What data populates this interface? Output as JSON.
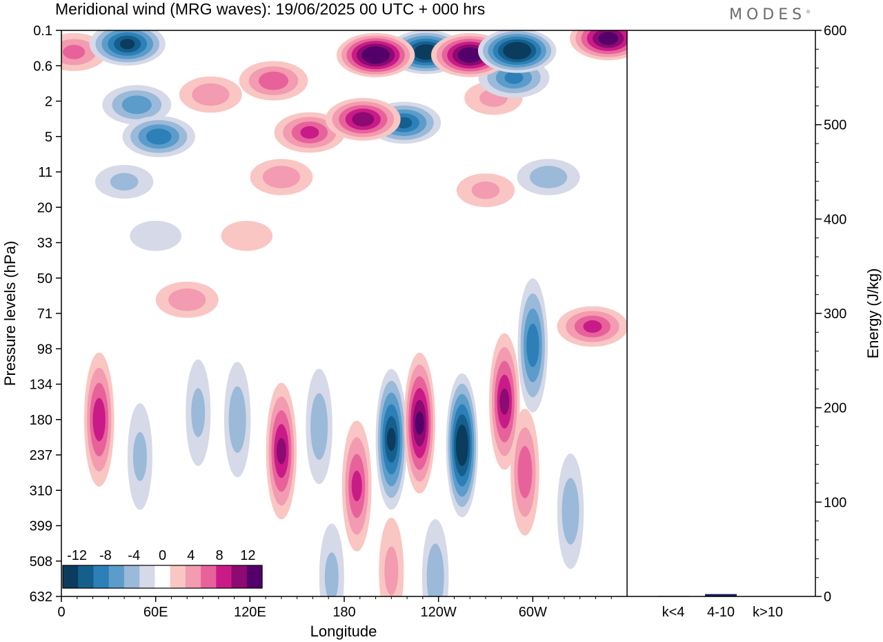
{
  "header": {
    "title": "Meridional wind (MRG waves):  19/06/2025  00 UTC  + 000 hrs",
    "logo": "MODES"
  },
  "colors": {
    "negative": [
      "#0b3c5d",
      "#155f8c",
      "#2d7fb8",
      "#5b9cca",
      "#9bb9d9",
      "#d5d9e8"
    ],
    "positive": [
      "#f9c6c3",
      "#f39bb0",
      "#e7629a",
      "#c91b87",
      "#8c0a72",
      "#54006a"
    ],
    "neutral": "#ffffff",
    "energy_bar": "#1a1a5e"
  },
  "chart_data": [
    {
      "type": "heatmap",
      "title": "Meridional wind (MRG waves):  19/06/2025  00 UTC  + 000 hrs",
      "xlabel": "Longitude",
      "ylabel": "Pressure levels (hPa)",
      "x_ticks": [
        "0",
        "60E",
        "120E",
        "180",
        "120W",
        "60W"
      ],
      "y_ticks": [
        "0.1",
        "0.6",
        "2",
        "5",
        "11",
        "20",
        "33",
        "50",
        "71",
        "98",
        "134",
        "180",
        "237",
        "310",
        "399",
        "508",
        "632"
      ],
      "colorbar": {
        "labels": [
          "-12",
          "-8",
          "-4",
          "0",
          "4",
          "8",
          "12"
        ],
        "levels": [
          -14,
          -12,
          -10,
          -8,
          -6,
          -4,
          -2,
          2,
          4,
          6,
          8,
          10,
          12,
          14
        ]
      },
      "features": [
        {
          "lon": 8,
          "lev": 0.3,
          "value": 6
        },
        {
          "lon": 42,
          "lev": 0.2,
          "value": -12
        },
        {
          "lon": 48,
          "lev": 2.2,
          "value": -7
        },
        {
          "lon": 62,
          "lev": 5.0,
          "value": -9
        },
        {
          "lon": 95,
          "lev": 1.6,
          "value": 5
        },
        {
          "lon": 135,
          "lev": 1.0,
          "value": 7
        },
        {
          "lon": 158,
          "lev": 4.5,
          "value": 8
        },
        {
          "lon": 192,
          "lev": 3.2,
          "value": 11
        },
        {
          "lon": 200,
          "lev": 0.35,
          "value": 15
        },
        {
          "lon": 232,
          "lev": 0.3,
          "value": -14
        },
        {
          "lon": 218,
          "lev": 3.5,
          "value": -10
        },
        {
          "lon": 260,
          "lev": 0.35,
          "value": 14
        },
        {
          "lon": 290,
          "lev": 0.28,
          "value": -15
        },
        {
          "lon": 288,
          "lev": 0.9,
          "value": -8
        },
        {
          "lon": 348,
          "lev": 0.15,
          "value": 13
        },
        {
          "lon": 275,
          "lev": 1.8,
          "value": 4
        },
        {
          "lon": 40,
          "lev": 13,
          "value": -4
        },
        {
          "lon": 140,
          "lev": 12,
          "value": 5
        },
        {
          "lon": 310,
          "lev": 12,
          "value": -5
        },
        {
          "lon": 270,
          "lev": 15,
          "value": 4
        },
        {
          "lon": 60,
          "lev": 30,
          "value": -3
        },
        {
          "lon": 118,
          "lev": 30,
          "value": 3
        },
        {
          "lon": 80,
          "lev": 62,
          "value": 5
        },
        {
          "lon": 300,
          "lev": 95,
          "value": -9
        },
        {
          "lon": 338,
          "lev": 80,
          "value": 8
        },
        {
          "lon": 24,
          "lev": 180,
          "value": 9
        },
        {
          "lon": 50,
          "lev": 240,
          "value": -4
        },
        {
          "lon": 87,
          "lev": 170,
          "value": -4
        },
        {
          "lon": 112,
          "lev": 180,
          "value": -5
        },
        {
          "lon": 140,
          "lev": 230,
          "value": 10
        },
        {
          "lon": 164,
          "lev": 190,
          "value": -5
        },
        {
          "lon": 188,
          "lev": 300,
          "value": 8
        },
        {
          "lon": 210,
          "lev": 210,
          "value": -12
        },
        {
          "lon": 228,
          "lev": 185,
          "value": 12
        },
        {
          "lon": 255,
          "lev": 220,
          "value": -14
        },
        {
          "lon": 282,
          "lev": 155,
          "value": 10
        },
        {
          "lon": 295,
          "lev": 270,
          "value": 7
        },
        {
          "lon": 324,
          "lev": 360,
          "value": -5
        },
        {
          "lon": 238,
          "lev": 560,
          "value": -5
        },
        {
          "lon": 210,
          "lev": 540,
          "value": 4
        },
        {
          "lon": 172,
          "lev": 560,
          "value": -4
        }
      ]
    },
    {
      "type": "bar",
      "ylabel": "Energy (J/kg)",
      "categories": [
        "k<4",
        "4-10",
        "k>10"
      ],
      "values": [
        0.5,
        2.5,
        0.3
      ],
      "ylim": [
        0,
        600
      ],
      "y_ticks": [
        "0",
        "100",
        "200",
        "300",
        "400",
        "500",
        "600"
      ]
    }
  ]
}
